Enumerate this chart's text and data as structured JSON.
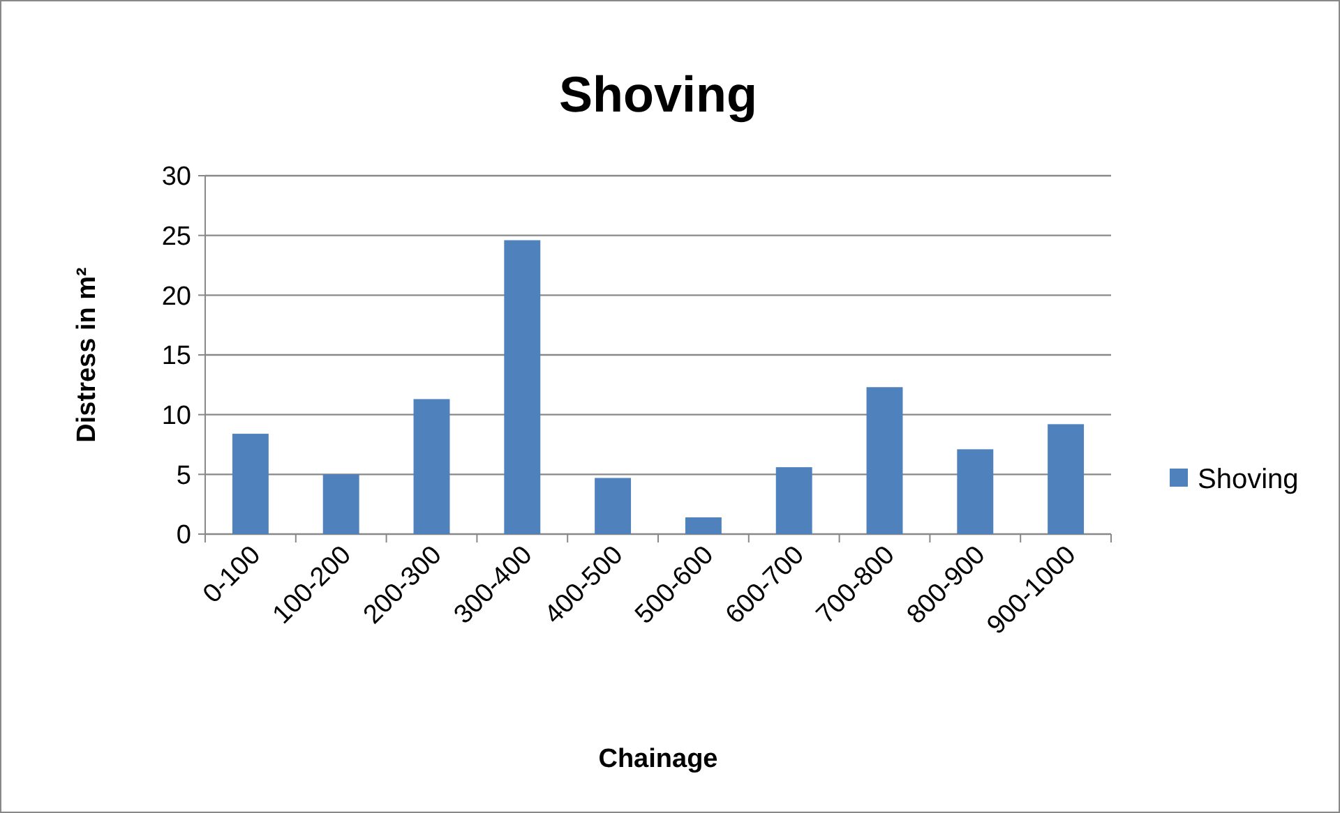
{
  "chart_data": {
    "type": "bar",
    "title": "Shoving",
    "xlabel": "Chainage",
    "ylabel": "Distress in m²",
    "categories": [
      "0-100",
      "100-200",
      "200-300",
      "300-400",
      "400-500",
      "500-600",
      "600-700",
      "700-800",
      "800-900",
      "900-1000"
    ],
    "series": [
      {
        "name": "Shoving",
        "color": "#4f81bd",
        "values": [
          8.4,
          5.0,
          11.3,
          24.6,
          4.7,
          1.4,
          5.6,
          12.3,
          7.1,
          9.2
        ]
      }
    ],
    "ylim": [
      0,
      30
    ],
    "yticks": [
      0,
      5,
      10,
      15,
      20,
      25,
      30
    ],
    "grid": "y",
    "legend": "right"
  }
}
